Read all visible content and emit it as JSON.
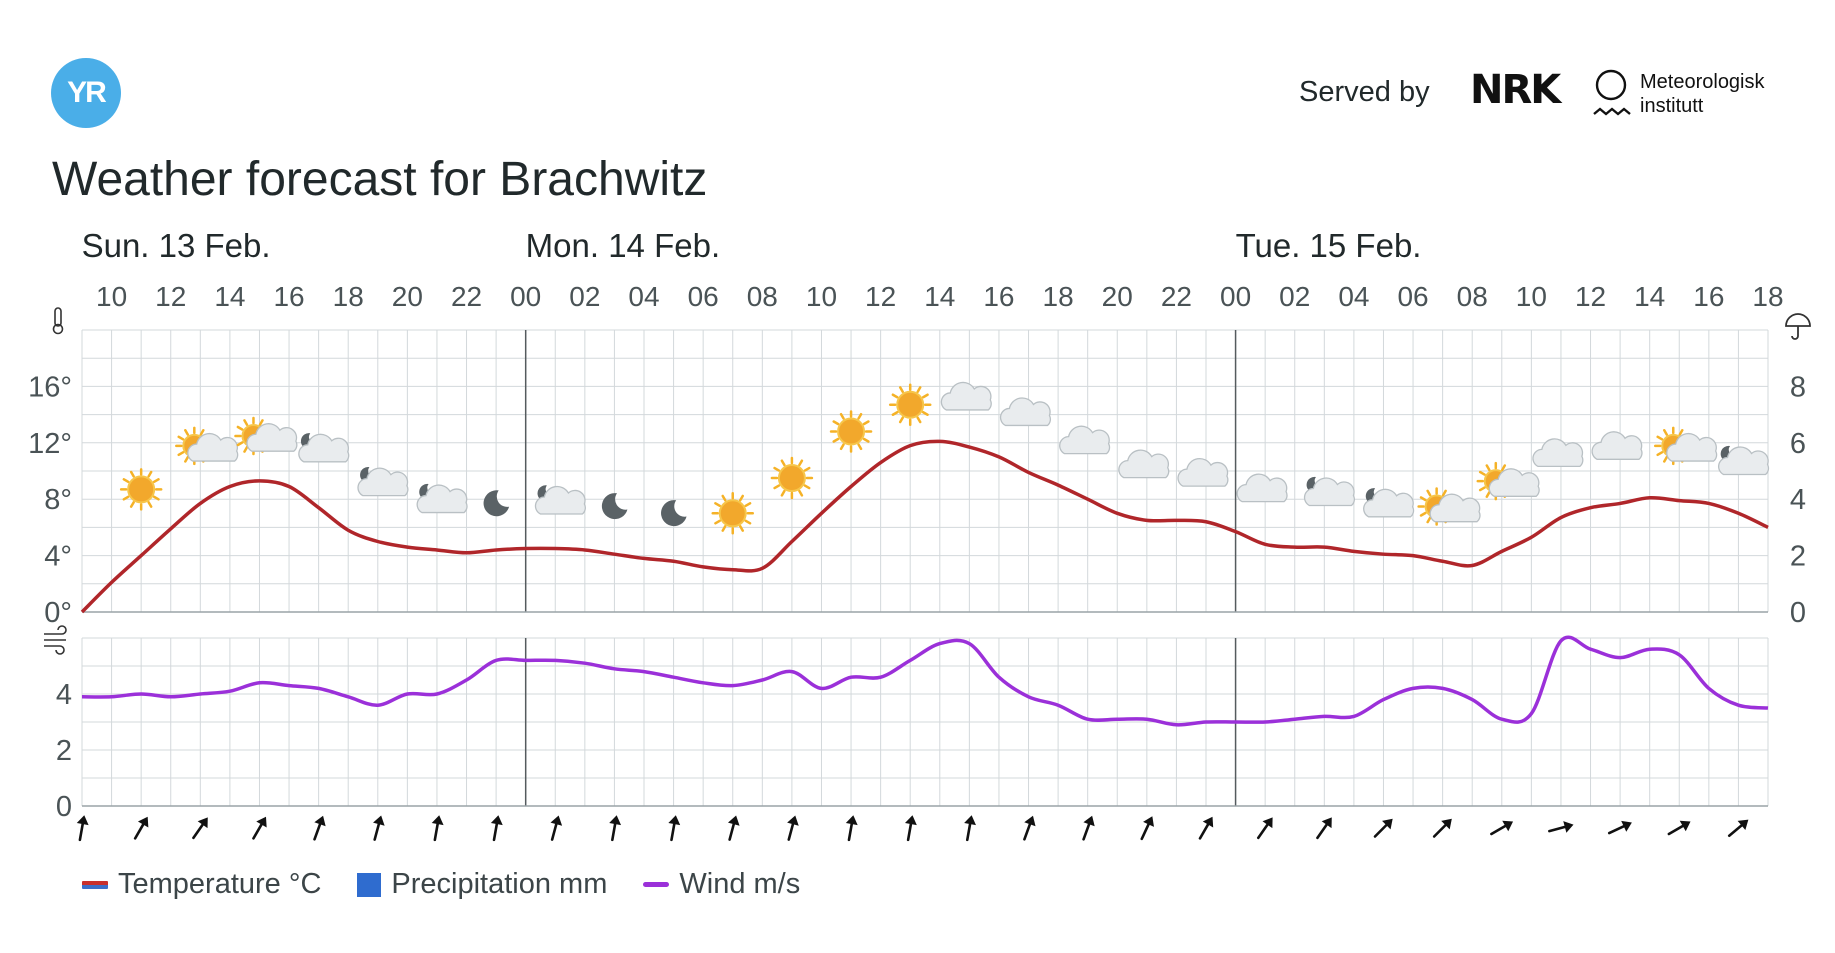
{
  "header": {
    "logo_text": "YR",
    "served_by": "Served by",
    "nrk_logo": "NRK",
    "met_name_line1": "Meteorologisk",
    "met_name_line2": "institutt",
    "title": "Weather forecast for Brachwitz"
  },
  "legend": {
    "temperature": "Temperature °C",
    "precipitation": "Precipitation mm",
    "wind": "Wind m/s"
  },
  "colors": {
    "temperature": "#b0262a",
    "wind": "#9b30d9",
    "precipitation": "#2f6ccf",
    "grid": "#d3d8db",
    "day_divider": "#555b5e"
  },
  "chart_data": {
    "type": "line",
    "days": [
      {
        "label": "Sun. 13 Feb.",
        "start_hour": 10
      },
      {
        "label": "Mon. 14 Feb.",
        "start_hour": 24
      },
      {
        "label": "Tue. 15 Feb.",
        "start_hour": 48
      }
    ],
    "x_ticks": [
      "10",
      "12",
      "14",
      "16",
      "18",
      "20",
      "22",
      "00",
      "02",
      "04",
      "06",
      "08",
      "10",
      "12",
      "14",
      "16",
      "18",
      "20",
      "22",
      "00",
      "02",
      "04",
      "06",
      "08",
      "10",
      "12",
      "14",
      "16",
      "18"
    ],
    "x_range_hours_from_sun_00": [
      9,
      66
    ],
    "temperature": {
      "name": "Temperature °C",
      "ylim": [
        0,
        20
      ],
      "y_ticks": [
        "0°",
        "4°",
        "8°",
        "12°",
        "16°"
      ],
      "hours": [
        9,
        10,
        11,
        12,
        13,
        14,
        15,
        16,
        17,
        18,
        19,
        20,
        21,
        22,
        23,
        24,
        25,
        26,
        27,
        28,
        29,
        30,
        31,
        32,
        33,
        34,
        35,
        36,
        37,
        38,
        39,
        40,
        41,
        42,
        43,
        44,
        45,
        46,
        47,
        48,
        49,
        50,
        51,
        52,
        53,
        54,
        55,
        56,
        57,
        58,
        59,
        60,
        61,
        62,
        63,
        64,
        65,
        66
      ],
      "values": [
        0.0,
        2.1,
        4.0,
        5.9,
        7.7,
        8.9,
        9.3,
        8.9,
        7.4,
        5.8,
        5.0,
        4.6,
        4.4,
        4.2,
        4.4,
        4.5,
        4.5,
        4.4,
        4.1,
        3.8,
        3.6,
        3.2,
        3.0,
        3.1,
        5.0,
        7.0,
        8.9,
        10.6,
        11.8,
        12.1,
        11.7,
        11.0,
        9.9,
        9.0,
        8.0,
        7.0,
        6.5,
        6.5,
        6.4,
        5.7,
        4.8,
        4.6,
        4.6,
        4.3,
        4.1,
        4.0,
        3.6,
        3.3,
        4.3,
        5.3,
        6.7,
        7.4,
        7.7,
        8.1,
        7.9,
        7.7,
        7.0,
        6.0
      ]
    },
    "precipitation": {
      "name": "Precipitation mm",
      "ylim": [
        0,
        10
      ],
      "y_ticks": [
        "0",
        "2",
        "4",
        "6",
        "8"
      ],
      "values": []
    },
    "wind": {
      "name": "Wind m/s",
      "ylim": [
        0,
        6
      ],
      "y_ticks": [
        "0",
        "2",
        "4"
      ],
      "hours": [
        9,
        10,
        11,
        12,
        13,
        14,
        15,
        16,
        17,
        18,
        19,
        20,
        21,
        22,
        23,
        24,
        25,
        26,
        27,
        28,
        29,
        30,
        31,
        32,
        33,
        34,
        35,
        36,
        37,
        38,
        39,
        40,
        41,
        42,
        43,
        44,
        45,
        46,
        47,
        48,
        49,
        50,
        51,
        52,
        53,
        54,
        55,
        56,
        57,
        58,
        59,
        60,
        61,
        62,
        63,
        64,
        65,
        66
      ],
      "values": [
        3.9,
        3.9,
        4.0,
        3.9,
        4.0,
        4.1,
        4.4,
        4.3,
        4.2,
        3.9,
        3.6,
        4.0,
        4.0,
        4.5,
        5.2,
        5.2,
        5.2,
        5.1,
        4.9,
        4.8,
        4.6,
        4.4,
        4.3,
        4.5,
        4.8,
        4.2,
        4.6,
        4.6,
        5.2,
        5.8,
        5.8,
        4.6,
        3.9,
        3.6,
        3.1,
        3.1,
        3.1,
        2.9,
        3.0,
        3.0,
        3.0,
        3.1,
        3.2,
        3.2,
        3.8,
        4.2,
        4.2,
        3.8,
        3.1,
        3.3,
        5.9,
        5.6,
        5.3,
        5.6,
        5.4,
        4.2,
        3.6,
        3.5
      ]
    },
    "weather_symbols": [
      {
        "hour": 11,
        "symbol": "sun-icon",
        "temp": 8.7
      },
      {
        "hour": 13,
        "symbol": "partly-cloudy-day-icon",
        "temp": 11.5
      },
      {
        "hour": 15,
        "symbol": "partly-cloudy-day-icon",
        "temp": 12.2
      },
      {
        "hour": 17,
        "symbol": "partly-cloudy-night-icon",
        "temp": 11.4
      },
      {
        "hour": 19,
        "symbol": "partly-cloudy-night-icon",
        "temp": 9.0
      },
      {
        "hour": 21,
        "symbol": "partly-cloudy-night-icon",
        "temp": 7.8
      },
      {
        "hour": 23,
        "symbol": "moon-icon",
        "temp": 7.7
      },
      {
        "hour": 25,
        "symbol": "partly-cloudy-night-icon",
        "temp": 7.7
      },
      {
        "hour": 27,
        "symbol": "moon-icon",
        "temp": 7.5
      },
      {
        "hour": 29,
        "symbol": "moon-icon",
        "temp": 7.0
      },
      {
        "hour": 31,
        "symbol": "sun-icon",
        "temp": 7.0
      },
      {
        "hour": 33,
        "symbol": "sun-icon",
        "temp": 9.5
      },
      {
        "hour": 35,
        "symbol": "sun-icon",
        "temp": 12.8
      },
      {
        "hour": 37,
        "symbol": "sun-icon",
        "temp": 14.7
      },
      {
        "hour": 39,
        "symbol": "cloud-icon",
        "temp": 15.0
      },
      {
        "hour": 41,
        "symbol": "cloud-icon",
        "temp": 13.9
      },
      {
        "hour": 43,
        "symbol": "cloud-icon",
        "temp": 11.9
      },
      {
        "hour": 45,
        "symbol": "cloud-icon",
        "temp": 10.2
      },
      {
        "hour": 47,
        "symbol": "cloud-icon",
        "temp": 9.6
      },
      {
        "hour": 49,
        "symbol": "cloud-icon",
        "temp": 8.5
      },
      {
        "hour": 51,
        "symbol": "partly-cloudy-night-icon",
        "temp": 8.3
      },
      {
        "hour": 53,
        "symbol": "partly-cloudy-night-icon",
        "temp": 7.5
      },
      {
        "hour": 55,
        "symbol": "partly-cloudy-day-icon",
        "temp": 7.2
      },
      {
        "hour": 57,
        "symbol": "partly-cloudy-day-icon",
        "temp": 9.0
      },
      {
        "hour": 59,
        "symbol": "cloud-icon",
        "temp": 11.0
      },
      {
        "hour": 61,
        "symbol": "cloud-icon",
        "temp": 11.5
      },
      {
        "hour": 63,
        "symbol": "partly-cloudy-day-icon",
        "temp": 11.5
      },
      {
        "hour": 65,
        "symbol": "partly-cloudy-night-icon",
        "temp": 10.5
      }
    ],
    "wind_arrows": [
      {
        "hour": 9,
        "direction_deg": 10
      },
      {
        "hour": 11,
        "direction_deg": 30
      },
      {
        "hour": 13,
        "direction_deg": 35
      },
      {
        "hour": 15,
        "direction_deg": 30
      },
      {
        "hour": 17,
        "direction_deg": 20
      },
      {
        "hour": 19,
        "direction_deg": 15
      },
      {
        "hour": 21,
        "direction_deg": 10
      },
      {
        "hour": 23,
        "direction_deg": 10
      },
      {
        "hour": 25,
        "direction_deg": 15
      },
      {
        "hour": 27,
        "direction_deg": 10
      },
      {
        "hour": 29,
        "direction_deg": 10
      },
      {
        "hour": 31,
        "direction_deg": 15
      },
      {
        "hour": 33,
        "direction_deg": 15
      },
      {
        "hour": 35,
        "direction_deg": 10
      },
      {
        "hour": 37,
        "direction_deg": 10
      },
      {
        "hour": 39,
        "direction_deg": 10
      },
      {
        "hour": 41,
        "direction_deg": 20
      },
      {
        "hour": 43,
        "direction_deg": 20
      },
      {
        "hour": 45,
        "direction_deg": 25
      },
      {
        "hour": 47,
        "direction_deg": 30
      },
      {
        "hour": 49,
        "direction_deg": 35
      },
      {
        "hour": 51,
        "direction_deg": 35
      },
      {
        "hour": 53,
        "direction_deg": 45
      },
      {
        "hour": 55,
        "direction_deg": 45
      },
      {
        "hour": 57,
        "direction_deg": 60
      },
      {
        "hour": 59,
        "direction_deg": 75
      },
      {
        "hour": 61,
        "direction_deg": 65
      },
      {
        "hour": 63,
        "direction_deg": 60
      },
      {
        "hour": 65,
        "direction_deg": 50
      }
    ]
  }
}
